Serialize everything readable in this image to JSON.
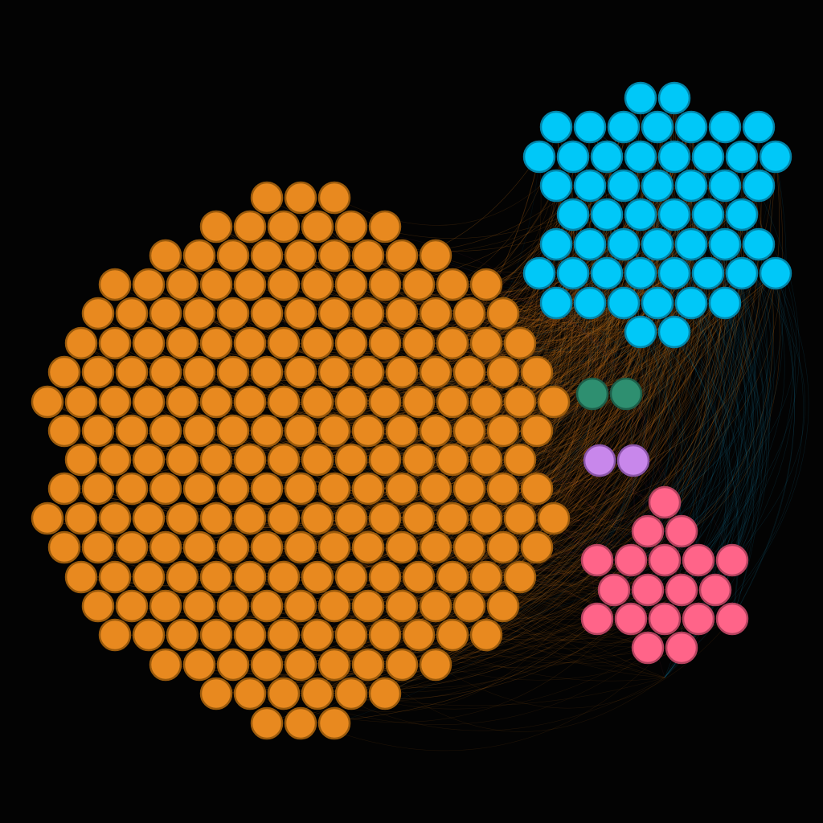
{
  "graph": {
    "background": "#030303",
    "clusters": [
      {
        "name": "orange",
        "fill": "#E8891F",
        "stroke": "#9A5A0C",
        "edge_color": "#C8721A",
        "node_count": 319
      },
      {
        "name": "cyan",
        "fill": "#00C8F8",
        "stroke": "#0384A8",
        "edge_color": "#1B7FA0",
        "node_count": 54
      },
      {
        "name": "green",
        "fill": "#2E8F70",
        "stroke": "#1D5E49",
        "edge_color": "#2E8F70",
        "node_count": 2
      },
      {
        "name": "violet",
        "fill": "#C887EB",
        "stroke": "#8A55A8",
        "edge_color": "#A070C0",
        "node_count": 2
      },
      {
        "name": "pink",
        "fill": "#FF6489",
        "stroke": "#B3425E",
        "edge_color": "#C84C6E",
        "node_count": 19
      }
    ]
  }
}
